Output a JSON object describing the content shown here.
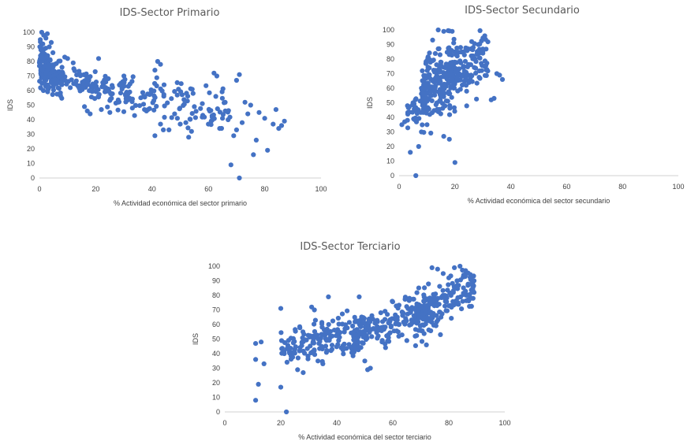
{
  "chart_data": [
    {
      "type": "scatter",
      "title": "IDS-Sector Primario",
      "xlabel": "% Actividad económica del sector primario",
      "ylabel": "IDS",
      "xlim": [
        0,
        100
      ],
      "ylim": [
        0,
        100
      ],
      "xticks": [
        "0",
        "20",
        "40",
        "60",
        "80",
        "100"
      ],
      "yticks": [
        "0",
        "10",
        "20",
        "30",
        "40",
        "50",
        "60",
        "70",
        "80",
        "90",
        "100"
      ],
      "grid": false,
      "color": "#4472C4",
      "seed": 11,
      "points": [
        [
          0.3,
          95
        ],
        [
          0.5,
          88
        ],
        [
          0.8,
          100
        ],
        [
          1.2,
          92
        ],
        [
          1.5,
          98
        ],
        [
          1.9,
          85
        ],
        [
          2.3,
          96
        ],
        [
          2.8,
          99
        ],
        [
          3.5,
          90
        ],
        [
          4.2,
          93
        ],
        [
          4.8,
          86
        ],
        [
          0.4,
          62
        ],
        [
          0.9,
          65
        ],
        [
          1.4,
          60
        ],
        [
          2.2,
          63
        ],
        [
          3.1,
          61
        ],
        [
          8,
          76
        ],
        [
          9,
          83
        ],
        [
          10,
          82
        ],
        [
          12,
          79
        ],
        [
          21,
          82
        ],
        [
          16,
          49
        ],
        [
          17,
          46
        ],
        [
          18,
          44
        ],
        [
          22,
          47
        ],
        [
          25,
          45
        ],
        [
          28,
          52
        ],
        [
          30,
          70
        ],
        [
          33,
          48
        ],
        [
          36,
          55
        ],
        [
          38,
          46
        ],
        [
          41,
          29
        ],
        [
          42,
          80
        ],
        [
          43,
          78
        ],
        [
          41,
          74
        ],
        [
          43,
          37
        ],
        [
          44,
          33
        ],
        [
          46,
          33
        ],
        [
          48,
          44
        ],
        [
          49,
          41
        ],
        [
          50,
          37
        ],
        [
          52,
          38
        ],
        [
          53,
          28
        ],
        [
          54,
          32
        ],
        [
          55,
          49
        ],
        [
          58,
          43
        ],
        [
          60,
          37
        ],
        [
          61,
          39
        ],
        [
          62,
          72
        ],
        [
          63,
          70
        ],
        [
          64,
          34
        ],
        [
          65,
          41
        ],
        [
          66,
          46
        ],
        [
          67,
          40
        ],
        [
          68,
          9
        ],
        [
          69,
          29
        ],
        [
          70,
          33
        ],
        [
          70,
          67
        ],
        [
          71,
          71
        ],
        [
          71,
          0
        ],
        [
          72,
          38
        ],
        [
          73,
          52
        ],
        [
          74,
          44
        ],
        [
          75,
          50
        ],
        [
          76,
          16
        ],
        [
          77,
          26
        ],
        [
          78,
          45
        ],
        [
          80,
          41
        ],
        [
          81,
          19
        ],
        [
          83,
          37
        ],
        [
          84,
          47
        ],
        [
          85,
          34
        ],
        [
          86,
          36
        ],
        [
          87,
          39
        ]
      ],
      "clusters": [
        {
          "n": 150,
          "x0": 0,
          "x1": 8,
          "skew": 1.5,
          "a": 79,
          "b": -1.8,
          "sd": 6
        },
        {
          "n": 120,
          "x0": 6,
          "x1": 32,
          "skew": 1,
          "a": 73,
          "b": -0.5,
          "sd": 5
        },
        {
          "n": 100,
          "x0": 28,
          "x1": 68,
          "skew": 1,
          "a": 68,
          "b": -0.35,
          "sd": 7
        }
      ]
    },
    {
      "type": "scatter",
      "title": "IDS-Sector Secundario",
      "xlabel": "% Actividad económica del sector secundario",
      "ylabel": "IDS",
      "xlim": [
        0,
        100
      ],
      "ylim": [
        0,
        100
      ],
      "xticks": [
        "0",
        "20",
        "40",
        "60",
        "80",
        "100"
      ],
      "yticks": [
        "0",
        "10",
        "20",
        "30",
        "40",
        "50",
        "60",
        "70",
        "80",
        "90",
        "100"
      ],
      "grid": false,
      "color": "#4472C4",
      "seed": 29,
      "points": [
        [
          6,
          0
        ],
        [
          20,
          9
        ],
        [
          4,
          16
        ],
        [
          7,
          20
        ],
        [
          8,
          30
        ],
        [
          10,
          35
        ],
        [
          11,
          42
        ],
        [
          14,
          100
        ],
        [
          16,
          99
        ],
        [
          19,
          99
        ],
        [
          12,
          93
        ],
        [
          22,
          88
        ],
        [
          26,
          92
        ],
        [
          27,
          80
        ],
        [
          30,
          84
        ],
        [
          35,
          70
        ],
        [
          36,
          69
        ],
        [
          37,
          66
        ],
        [
          33,
          52
        ],
        [
          34,
          53
        ],
        [
          1,
          35
        ],
        [
          2,
          37
        ],
        [
          3,
          38
        ],
        [
          3,
          48
        ],
        [
          5,
          50
        ],
        [
          16,
          27
        ],
        [
          18,
          25
        ],
        [
          20,
          85
        ],
        [
          24,
          62
        ],
        [
          23,
          75
        ]
      ],
      "clusters": [
        {
          "n": 180,
          "x0": 8,
          "x1": 20,
          "skew": 1,
          "a": 48,
          "b": 1.2,
          "sd": 11
        },
        {
          "n": 140,
          "x0": 14,
          "x1": 32,
          "skew": 1,
          "a": 52,
          "b": 0.9,
          "sd": 10
        },
        {
          "n": 45,
          "x0": 3,
          "x1": 10,
          "skew": 1,
          "a": 36,
          "b": 1.6,
          "sd": 6
        }
      ]
    },
    {
      "type": "scatter",
      "title": "IDS-Sector Terciario",
      "xlabel": "% Actividad económica del sector terciario",
      "ylabel": "IDS",
      "xlim": [
        0,
        100
      ],
      "ylim": [
        0,
        100
      ],
      "xticks": [
        "0",
        "20",
        "40",
        "60",
        "80",
        "100"
      ],
      "yticks": [
        "0",
        "10",
        "20",
        "30",
        "40",
        "50",
        "60",
        "70",
        "80",
        "90",
        "100"
      ],
      "grid": false,
      "color": "#4472C4",
      "seed": 47,
      "points": [
        [
          11,
          8
        ],
        [
          12,
          19
        ],
        [
          11,
          36
        ],
        [
          11,
          47
        ],
        [
          13,
          48
        ],
        [
          14,
          33
        ],
        [
          20,
          17
        ],
        [
          22,
          0
        ],
        [
          20,
          71
        ],
        [
          25,
          43
        ],
        [
          26,
          29
        ],
        [
          28,
          27
        ],
        [
          31,
          72
        ],
        [
          32,
          70
        ],
        [
          35,
          33
        ],
        [
          37,
          79
        ],
        [
          48,
          79
        ],
        [
          50,
          35
        ],
        [
          51,
          29
        ],
        [
          52,
          30
        ],
        [
          74,
          99
        ],
        [
          76,
          98
        ],
        [
          82,
          99
        ],
        [
          84,
          100
        ],
        [
          86,
          97
        ],
        [
          78,
          95
        ],
        [
          80,
          92
        ],
        [
          89,
          90
        ],
        [
          89,
          82
        ],
        [
          88,
          78
        ],
        [
          65,
          49
        ],
        [
          68,
          52
        ],
        [
          72,
          46
        ],
        [
          77,
          53
        ]
      ],
      "clusters": [
        {
          "n": 150,
          "x0": 20,
          "x1": 50,
          "skew": 1,
          "a": 38,
          "b": 0.35,
          "sd": 7
        },
        {
          "n": 200,
          "x0": 45,
          "x1": 75,
          "skew": 1,
          "a": 20,
          "b": 0.7,
          "sd": 7
        },
        {
          "n": 150,
          "x0": 68,
          "x1": 89,
          "skew": 1,
          "a": -18,
          "b": 1.2,
          "sd": 8
        }
      ]
    }
  ]
}
